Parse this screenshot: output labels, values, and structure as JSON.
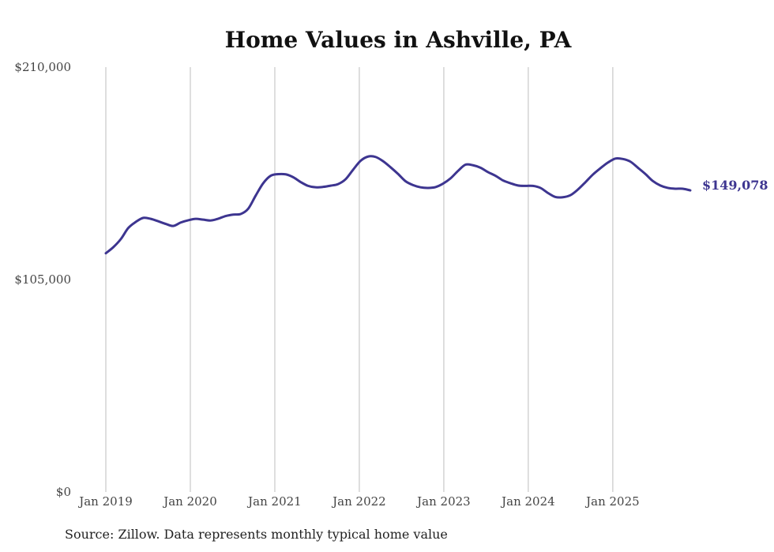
{
  "chart_data": {
    "type": "line",
    "title": "Home Values in Ashville, PA",
    "xlabel": "",
    "ylabel": "",
    "ylim": [
      0,
      210000
    ],
    "yticks": [
      {
        "value": 0,
        "label": "$0"
      },
      {
        "value": 105000,
        "label": "$105,000"
      },
      {
        "value": 210000,
        "label": "$210,000"
      }
    ],
    "x_start": 2019.0,
    "x_end": 2025.917,
    "xticks": [
      {
        "value": 2019,
        "label": "Jan 2019"
      },
      {
        "value": 2020,
        "label": "Jan 2020"
      },
      {
        "value": 2021,
        "label": "Jan 2021"
      },
      {
        "value": 2022,
        "label": "Jan 2022"
      },
      {
        "value": 2023,
        "label": "Jan 2023"
      },
      {
        "value": 2024,
        "label": "Jan 2024"
      },
      {
        "value": 2025,
        "label": "Jan 2025"
      }
    ],
    "grid": "vertical",
    "series": [
      {
        "name": "Typical home value",
        "color": "#3d3590",
        "values": [
          118000,
          121000,
          125000,
          130500,
          133500,
          135500,
          135000,
          133800,
          132500,
          131500,
          133200,
          134300,
          135000,
          134600,
          134200,
          135100,
          136400,
          137100,
          137400,
          140000,
          146500,
          152600,
          156300,
          157100,
          157000,
          155600,
          153200,
          151300,
          150600,
          150800,
          151400,
          152200,
          154600,
          159300,
          163700,
          165800,
          165600,
          163500,
          160500,
          157200,
          153600,
          151700,
          150600,
          150300,
          150700,
          152400,
          155000,
          158700,
          161800,
          161500,
          160300,
          158100,
          156300,
          154000,
          152600,
          151500,
          151300,
          151300,
          150300,
          147800,
          145800,
          145700,
          146700,
          149500,
          153100,
          156900,
          160000,
          162800,
          164800,
          164600,
          163300,
          160300,
          157200,
          153700,
          151500,
          150300,
          149900,
          149900,
          149078
        ],
        "end_label": "$149,078"
      }
    ],
    "source": "Source: Zillow. Data represents monthly typical home value"
  }
}
